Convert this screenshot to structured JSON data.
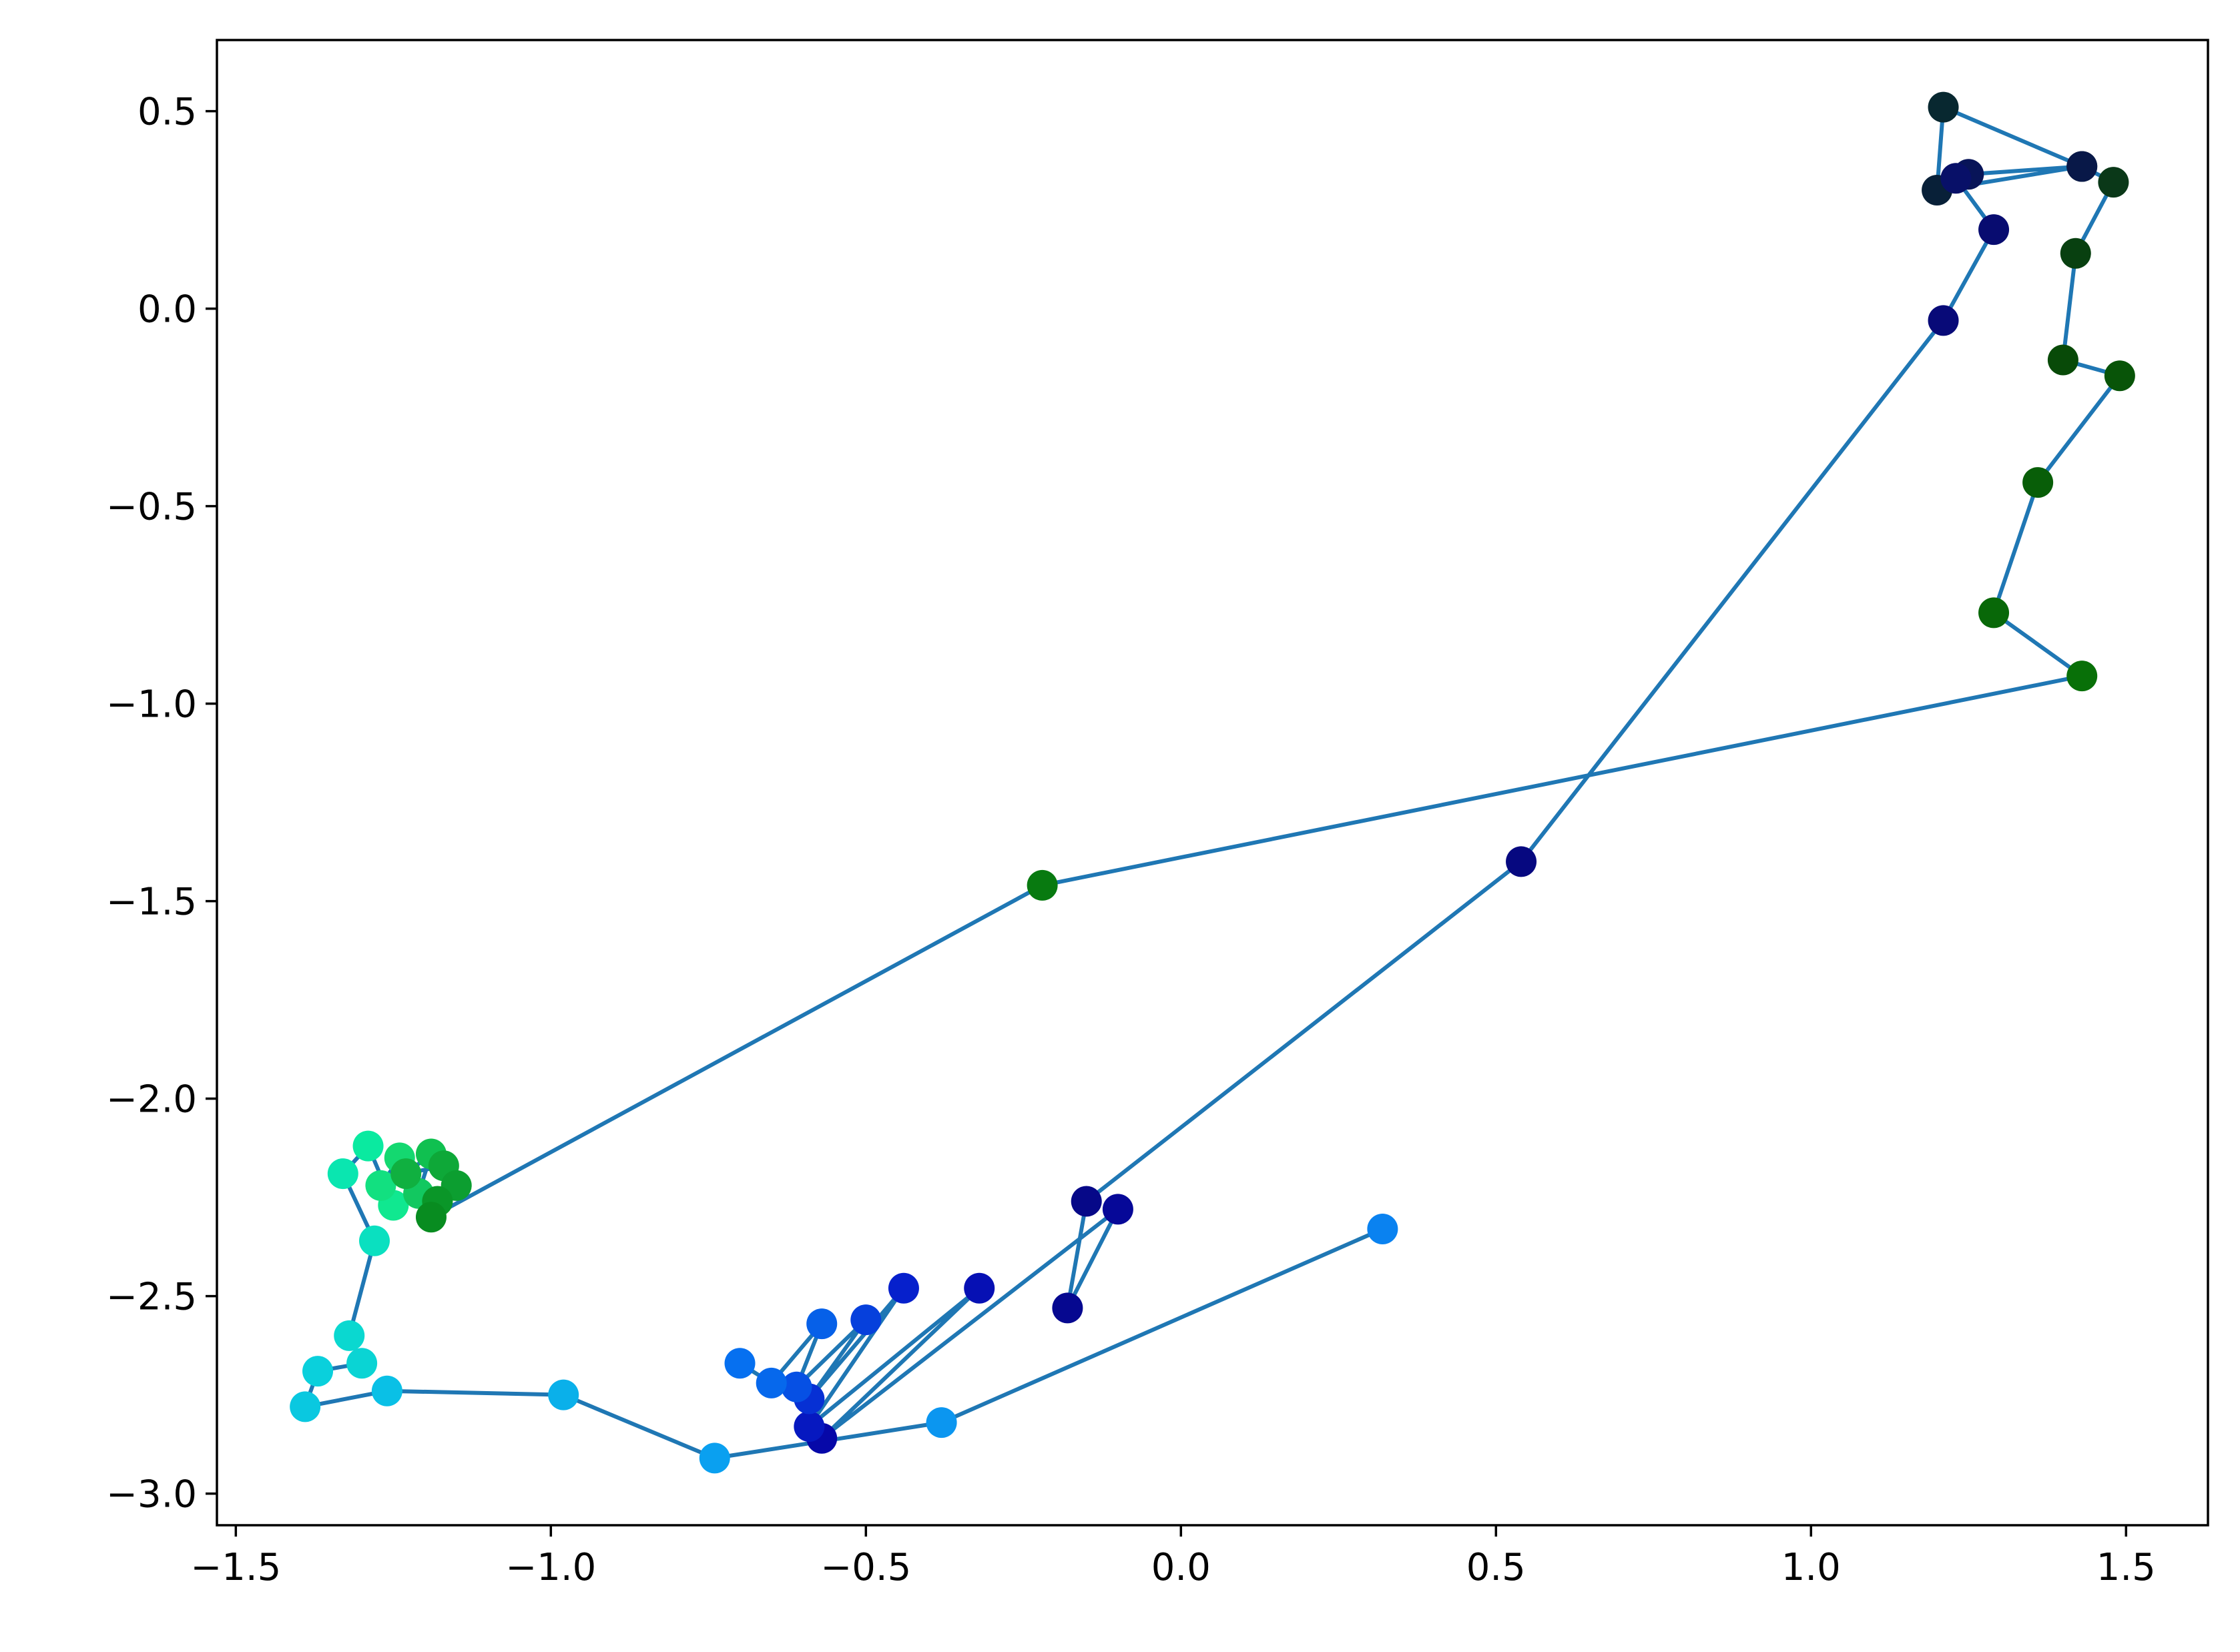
{
  "chart_data": {
    "type": "scatter",
    "title": "",
    "xlabel": "",
    "ylabel": "",
    "xlim": [
      -1.53,
      1.63
    ],
    "ylim": [
      -3.08,
      0.68
    ],
    "xticks": [
      -1.5,
      -1.0,
      -0.5,
      0.0,
      0.5,
      1.0,
      1.5
    ],
    "yticks": [
      0.5,
      0.0,
      -0.5,
      -1.0,
      -1.5,
      -2.0,
      -2.5,
      -3.0
    ],
    "xtick_labels": [
      "−1.5",
      "−1.0",
      "−0.5",
      "0.0",
      "0.5",
      "1.0",
      "1.5"
    ],
    "ytick_labels": [
      "0.5",
      "0.0",
      "−0.5",
      "−1.0",
      "−1.5",
      "−2.0",
      "−2.5",
      "−3.0"
    ],
    "grid": false,
    "line_color": "#1f77b4",
    "axis_color": "#000000",
    "points": [
      {
        "x": 0.32,
        "y": -2.33,
        "color": "#0a82f0"
      },
      {
        "x": -0.38,
        "y": -2.82,
        "color": "#0b96f0"
      },
      {
        "x": -0.74,
        "y": -2.91,
        "color": "#0aa0f0"
      },
      {
        "x": -0.98,
        "y": -2.75,
        "color": "#0ab0ea"
      },
      {
        "x": -1.26,
        "y": -2.74,
        "color": "#0ac0e6"
      },
      {
        "x": -1.39,
        "y": -2.78,
        "color": "#0ac8e0"
      },
      {
        "x": -1.37,
        "y": -2.69,
        "color": "#0ad0dc"
      },
      {
        "x": -1.3,
        "y": -2.67,
        "color": "#0ad4d4"
      },
      {
        "x": -1.32,
        "y": -2.6,
        "color": "#0ad8d0"
      },
      {
        "x": -1.28,
        "y": -2.36,
        "color": "#0ae0c0"
      },
      {
        "x": -1.33,
        "y": -2.19,
        "color": "#0ae6b0"
      },
      {
        "x": -1.29,
        "y": -2.12,
        "color": "#0aeaa0"
      },
      {
        "x": -1.25,
        "y": -2.27,
        "color": "#10e890"
      },
      {
        "x": -1.27,
        "y": -2.22,
        "color": "#12e080"
      },
      {
        "x": -1.24,
        "y": -2.15,
        "color": "#14d870"
      },
      {
        "x": -1.21,
        "y": -2.24,
        "color": "#12c860"
      },
      {
        "x": -1.19,
        "y": -2.14,
        "color": "#10c050"
      },
      {
        "x": -1.23,
        "y": -2.19,
        "color": "#10b040"
      },
      {
        "x": -1.17,
        "y": -2.17,
        "color": "#0ea838"
      },
      {
        "x": -1.15,
        "y": -2.22,
        "color": "#0c9e30"
      },
      {
        "x": -1.18,
        "y": -2.26,
        "color": "#0a9628"
      },
      {
        "x": -1.19,
        "y": -2.3,
        "color": "#088c20"
      },
      {
        "x": -0.22,
        "y": -1.46,
        "color": "#087a10"
      },
      {
        "x": 1.43,
        "y": -0.93,
        "color": "#087008"
      },
      {
        "x": 1.29,
        "y": -0.77,
        "color": "#086808"
      },
      {
        "x": 1.36,
        "y": -0.44,
        "color": "#085e08"
      },
      {
        "x": 1.49,
        "y": -0.17,
        "color": "#085408"
      },
      {
        "x": 1.4,
        "y": -0.13,
        "color": "#084a08"
      },
      {
        "x": 1.42,
        "y": 0.14,
        "color": "#084010"
      },
      {
        "x": 1.48,
        "y": 0.32,
        "color": "#0a3818"
      },
      {
        "x": 1.43,
        "y": 0.36,
        "color": "#0a3020"
      },
      {
        "x": 1.21,
        "y": 0.51,
        "color": "#082830"
      },
      {
        "x": 1.2,
        "y": 0.3,
        "color": "#082038"
      },
      {
        "x": 1.43,
        "y": 0.36,
        "color": "#081848"
      },
      {
        "x": 1.25,
        "y": 0.34,
        "color": "#081458"
      },
      {
        "x": 1.23,
        "y": 0.33,
        "color": "#081068"
      },
      {
        "x": 1.29,
        "y": 0.2,
        "color": "#080c70"
      },
      {
        "x": 1.21,
        "y": -0.03,
        "color": "#080a78"
      },
      {
        "x": 0.54,
        "y": -1.4,
        "color": "#060880"
      },
      {
        "x": -0.15,
        "y": -2.26,
        "color": "#060888"
      },
      {
        "x": -0.18,
        "y": -2.53,
        "color": "#060890"
      },
      {
        "x": -0.1,
        "y": -2.28,
        "color": "#060898"
      },
      {
        "x": -0.57,
        "y": -2.86,
        "color": "#0608a8"
      },
      {
        "x": -0.32,
        "y": -2.48,
        "color": "#0610b4"
      },
      {
        "x": -0.59,
        "y": -2.83,
        "color": "#0618c0"
      },
      {
        "x": -0.44,
        "y": -2.48,
        "color": "#0620cc"
      },
      {
        "x": -0.59,
        "y": -2.76,
        "color": "#0630d4"
      },
      {
        "x": -0.5,
        "y": -2.56,
        "color": "#0640dc"
      },
      {
        "x": -0.61,
        "y": -2.73,
        "color": "#0650e4"
      },
      {
        "x": -0.57,
        "y": -2.57,
        "color": "#0660e8"
      },
      {
        "x": -0.65,
        "y": -2.72,
        "color": "#0668ec"
      },
      {
        "x": -0.7,
        "y": -2.67,
        "color": "#0670f0"
      }
    ]
  }
}
